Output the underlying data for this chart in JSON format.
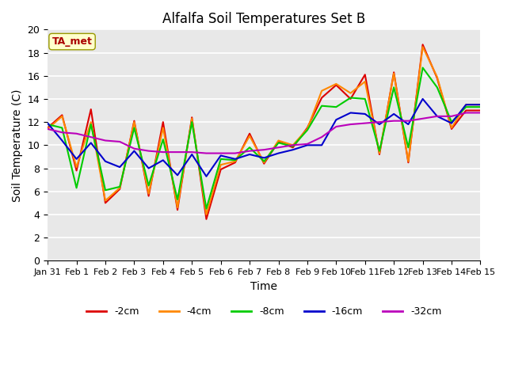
{
  "title": "Alfalfa Soil Temperatures Set B",
  "xlabel": "Time",
  "ylabel": "Soil Temperature (C)",
  "ylim": [
    0,
    20
  ],
  "annotation_text": "TA_met",
  "bg_color": "#e8e8e8",
  "line_colors": {
    "-2cm": "#dd0000",
    "-4cm": "#ff8800",
    "-8cm": "#00cc00",
    "-16cm": "#0000cc",
    "-32cm": "#bb00bb"
  },
  "x_labels": [
    "Jan 31",
    "Feb 1",
    "Feb 2",
    "Feb 3",
    "Feb 4",
    "Feb 5",
    "Feb 6",
    "Feb 7",
    "Feb 8",
    "Feb 9",
    "Feb 10",
    "Feb 11",
    "Feb 12",
    "Feb 13",
    "Feb 14",
    "Feb 15"
  ],
  "series": {
    "-2cm": [
      11.5,
      12.6,
      7.8,
      13.1,
      5.0,
      6.2,
      12.1,
      5.6,
      12.0,
      4.4,
      12.4,
      3.6,
      7.9,
      8.5,
      11.0,
      8.4,
      10.3,
      9.8,
      11.5,
      14.1,
      15.2,
      14.0,
      16.1,
      9.2,
      16.3,
      8.5,
      18.7,
      15.8,
      11.4,
      13.0,
      13.0
    ],
    "-4cm": [
      11.4,
      12.5,
      8.1,
      12.0,
      5.2,
      6.3,
      12.0,
      5.8,
      11.5,
      4.6,
      12.3,
      4.0,
      8.3,
      8.6,
      10.8,
      8.5,
      10.4,
      10.0,
      11.4,
      14.7,
      15.3,
      14.5,
      15.5,
      9.3,
      16.2,
      8.6,
      18.5,
      15.9,
      11.5,
      13.5,
      13.5
    ],
    "-8cm": [
      11.8,
      11.5,
      6.3,
      11.8,
      6.1,
      6.4,
      11.5,
      6.5,
      10.5,
      5.3,
      12.0,
      4.5,
      8.8,
      8.7,
      9.8,
      8.6,
      10.2,
      9.9,
      11.3,
      13.4,
      13.3,
      14.1,
      14.0,
      9.5,
      15.0,
      9.8,
      16.7,
      15.0,
      12.0,
      13.3,
      13.3
    ],
    "-16cm": [
      11.9,
      10.4,
      8.8,
      10.2,
      8.6,
      8.1,
      9.5,
      8.0,
      8.7,
      7.4,
      9.2,
      7.3,
      9.1,
      8.8,
      9.2,
      8.9,
      9.3,
      9.6,
      10.0,
      10.0,
      12.2,
      12.8,
      12.7,
      11.8,
      12.7,
      11.8,
      14.0,
      12.5,
      11.9,
      13.5,
      13.5
    ],
    "-32cm": [
      11.4,
      11.1,
      11.0,
      10.7,
      10.4,
      10.3,
      9.7,
      9.5,
      9.4,
      9.4,
      9.4,
      9.3,
      9.3,
      9.3,
      9.5,
      9.6,
      9.8,
      10.0,
      10.1,
      10.7,
      11.6,
      11.8,
      11.9,
      12.0,
      12.1,
      12.1,
      12.3,
      12.5,
      12.5,
      12.8,
      12.8
    ]
  }
}
